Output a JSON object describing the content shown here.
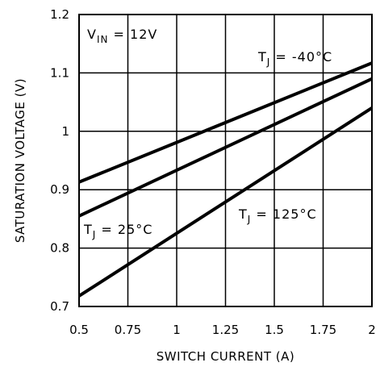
{
  "chart_data": {
    "type": "line",
    "xlabel": "SWITCH CURRENT (A)",
    "ylabel": "SATURATION VOLTAGE (V)",
    "xlim": [
      0.5,
      2
    ],
    "ylim": [
      0.7,
      1.2
    ],
    "x_ticks": [
      0.5,
      0.75,
      1,
      1.25,
      1.5,
      1.75,
      2
    ],
    "x_tick_labels": [
      "0.5",
      "0.75",
      "1",
      "1.25",
      "1.5",
      "1.75",
      "2"
    ],
    "y_ticks": [
      0.7,
      0.8,
      0.9,
      1,
      1.1,
      1.2
    ],
    "y_tick_labels": [
      "0.7",
      "0.8",
      "0.9",
      "1",
      "1.1",
      "1.2"
    ],
    "grid": true,
    "series": [
      {
        "name": "T_J = -40°C",
        "x": [
          0.5,
          2
        ],
        "y": [
          0.913,
          1.117
        ]
      },
      {
        "name": "T_J = 25°C",
        "x": [
          0.5,
          2
        ],
        "y": [
          0.855,
          1.09
        ]
      },
      {
        "name": "T_J = 125°C",
        "x": [
          0.5,
          2
        ],
        "y": [
          0.718,
          1.04
        ]
      }
    ],
    "annotations": {
      "vin": {
        "main": "V",
        "sub": "IN",
        "rest": " = 12V"
      },
      "t_neg40": {
        "main": "T",
        "sub": "J",
        "rest": " = -40°C"
      },
      "t_25": {
        "main": "T",
        "sub": "J",
        "rest": " = 25°C"
      },
      "t_125": {
        "main": "T",
        "sub": "J",
        "rest": " = 125°C"
      }
    },
    "colors": {
      "line": "#000000",
      "grid": "#000000",
      "background": "#ffffff"
    }
  }
}
